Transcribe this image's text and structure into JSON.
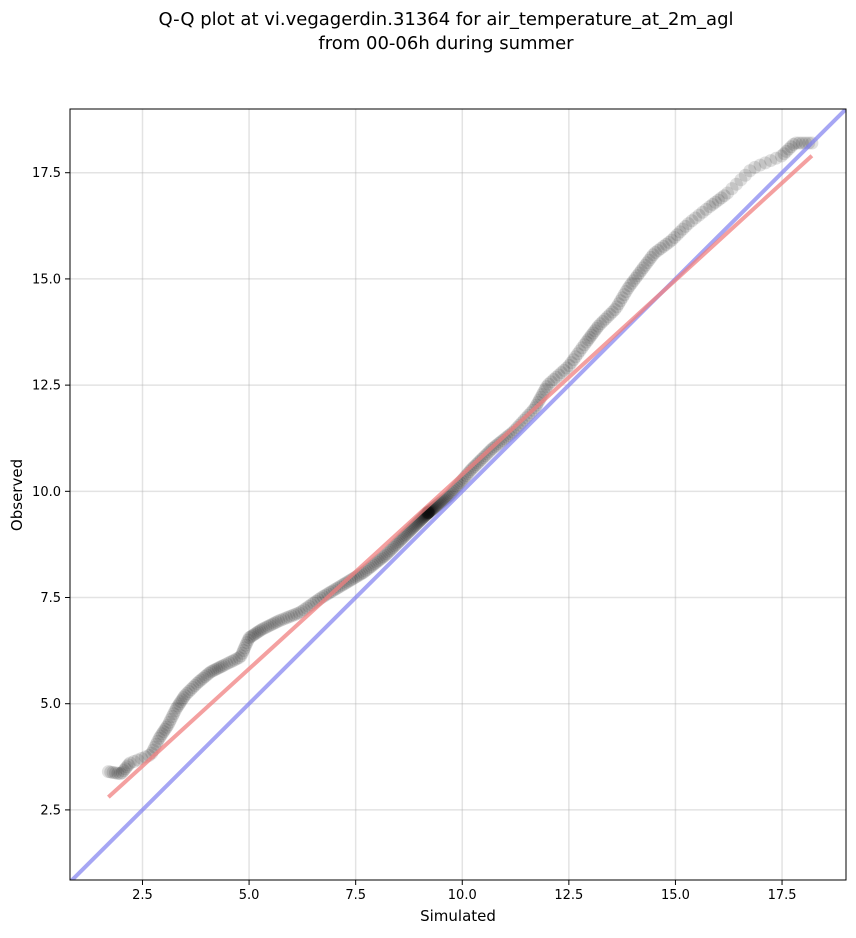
{
  "chart_data": {
    "type": "scatter",
    "title_line1": "Q-Q plot at vi.vegagerdin.31364 for air_temperature_at_2m_agl",
    "title_line2": "from 00-06h during summer",
    "xlabel": "Simulated",
    "ylabel": "Observed",
    "xlim": [
      0.8,
      19.0
    ],
    "ylim": [
      0.85,
      19.0
    ],
    "xticks": [
      2.5,
      5.0,
      7.5,
      10.0,
      12.5,
      15.0,
      17.5
    ],
    "yticks": [
      2.5,
      5.0,
      7.5,
      10.0,
      12.5,
      15.0,
      17.5
    ],
    "grid": true,
    "colors": {
      "points": "#000000",
      "fit_line": "#f08080",
      "identity_line": "#8080f0"
    },
    "identity_line": {
      "from": [
        0.8,
        0.8
      ],
      "to": [
        19.0,
        19.0
      ]
    },
    "fit_line": {
      "from": [
        1.7,
        2.8
      ],
      "to": [
        18.2,
        17.9
      ]
    },
    "quantile_anchors": [
      [
        1.7,
        3.4
      ],
      [
        2.0,
        3.35
      ],
      [
        2.2,
        3.6
      ],
      [
        2.7,
        3.8
      ],
      [
        2.9,
        4.2
      ],
      [
        3.1,
        4.5
      ],
      [
        3.3,
        4.9
      ],
      [
        3.5,
        5.2
      ],
      [
        3.8,
        5.5
      ],
      [
        4.1,
        5.75
      ],
      [
        4.4,
        5.9
      ],
      [
        4.8,
        6.1
      ],
      [
        5.0,
        6.55
      ],
      [
        5.3,
        6.75
      ],
      [
        5.7,
        6.95
      ],
      [
        6.2,
        7.15
      ],
      [
        6.7,
        7.5
      ],
      [
        7.2,
        7.8
      ],
      [
        7.7,
        8.1
      ],
      [
        8.2,
        8.5
      ],
      [
        8.7,
        9.0
      ],
      [
        9.2,
        9.5
      ],
      [
        9.7,
        9.9
      ],
      [
        10.2,
        10.5
      ],
      [
        10.7,
        11.0
      ],
      [
        11.2,
        11.4
      ],
      [
        11.7,
        11.95
      ],
      [
        12.0,
        12.5
      ],
      [
        12.5,
        12.95
      ],
      [
        12.9,
        13.5
      ],
      [
        13.2,
        13.9
      ],
      [
        13.6,
        14.3
      ],
      [
        13.9,
        14.8
      ],
      [
        14.2,
        15.2
      ],
      [
        14.5,
        15.6
      ],
      [
        14.9,
        15.9
      ],
      [
        15.3,
        16.3
      ],
      [
        15.8,
        16.7
      ],
      [
        16.2,
        17.0
      ],
      [
        16.8,
        17.6
      ],
      [
        17.5,
        17.9
      ],
      [
        17.8,
        18.2
      ],
      [
        18.2,
        18.2
      ]
    ],
    "n_points": 360
  }
}
